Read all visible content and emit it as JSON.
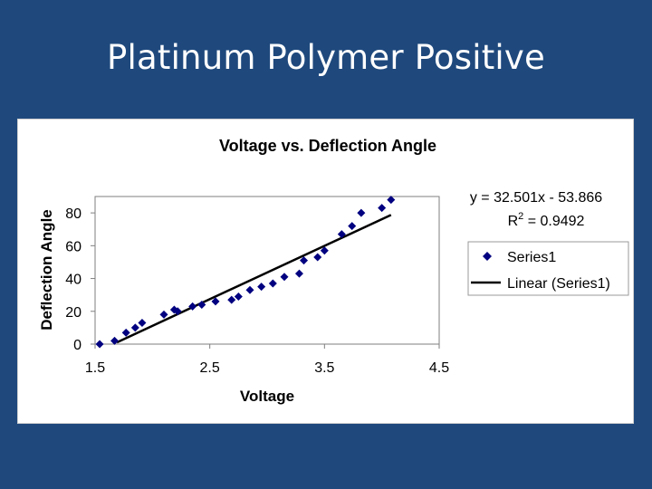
{
  "slide": {
    "title": "Platinum Polymer Positive"
  },
  "chart_data": {
    "type": "scatter",
    "title": "Voltage vs. Deflection Angle",
    "xlabel": "Voltage",
    "ylabel": "Deflection Angle",
    "xlim": [
      1.5,
      4.5
    ],
    "ylim": [
      0,
      90
    ],
    "x_ticks": [
      1.5,
      2.5,
      3.5,
      4.5
    ],
    "y_ticks": [
      0,
      20,
      40,
      60,
      80
    ],
    "grid": "horizontal-none",
    "series": [
      {
        "name": "Series1",
        "marker": "diamond",
        "color": "#000080",
        "points": [
          {
            "x": 1.54,
            "y": 0
          },
          {
            "x": 1.67,
            "y": 2
          },
          {
            "x": 1.77,
            "y": 7
          },
          {
            "x": 1.85,
            "y": 10
          },
          {
            "x": 1.91,
            "y": 13
          },
          {
            "x": 2.1,
            "y": 18
          },
          {
            "x": 2.19,
            "y": 21
          },
          {
            "x": 2.22,
            "y": 20
          },
          {
            "x": 2.35,
            "y": 23
          },
          {
            "x": 2.43,
            "y": 24
          },
          {
            "x": 2.55,
            "y": 26
          },
          {
            "x": 2.69,
            "y": 27
          },
          {
            "x": 2.75,
            "y": 29
          },
          {
            "x": 2.85,
            "y": 33
          },
          {
            "x": 2.95,
            "y": 35
          },
          {
            "x": 3.05,
            "y": 37
          },
          {
            "x": 3.15,
            "y": 41
          },
          {
            "x": 3.28,
            "y": 43
          },
          {
            "x": 3.32,
            "y": 51
          },
          {
            "x": 3.44,
            "y": 53
          },
          {
            "x": 3.5,
            "y": 57
          },
          {
            "x": 3.65,
            "y": 67
          },
          {
            "x": 3.74,
            "y": 72
          },
          {
            "x": 3.82,
            "y": 80
          },
          {
            "x": 4.0,
            "y": 83
          },
          {
            "x": 4.08,
            "y": 88
          }
        ]
      },
      {
        "name": "Linear (Series1)",
        "type": "line",
        "color": "#000000",
        "slope": 32.501,
        "intercept": -53.866,
        "x_range": [
          1.69,
          4.08
        ]
      }
    ],
    "annotations": {
      "equation": "y = 32.501x - 53.866",
      "r2_prefix": "R",
      "r2_exp": "2",
      "r2_suffix": " = 0.9492"
    },
    "legend": {
      "placement": "right",
      "entries": [
        "Series1",
        "Linear (Series1)"
      ]
    }
  }
}
